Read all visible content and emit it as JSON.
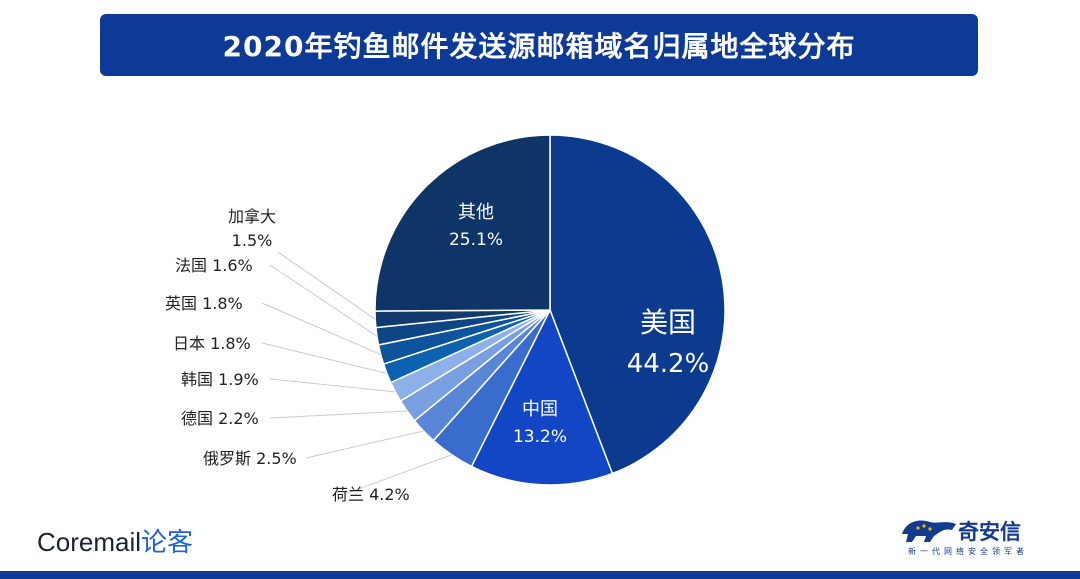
{
  "chart_data": {
    "type": "pie",
    "title": "2020年钓鱼邮件发送源邮箱域名归属地全球分布",
    "slices": [
      {
        "label": "美国",
        "value": 44.2,
        "display": "44.2%",
        "color": "#0c3a8e"
      },
      {
        "label": "中国",
        "value": 13.2,
        "display": "13.2%",
        "color": "#1346c4"
      },
      {
        "label": "荷兰",
        "value": 4.2,
        "display": "4.2%",
        "color": "#3a6ccd"
      },
      {
        "label": "俄罗斯",
        "value": 2.5,
        "display": "2.5%",
        "color": "#5a86d8"
      },
      {
        "label": "德国",
        "value": 2.2,
        "display": "2.2%",
        "color": "#7a9fe0"
      },
      {
        "label": "韩国",
        "value": 1.9,
        "display": "1.9%",
        "color": "#8eb0ea"
      },
      {
        "label": "日本",
        "value": 1.8,
        "display": "1.8%",
        "color": "#0d62b0"
      },
      {
        "label": "英国",
        "value": 1.8,
        "display": "1.8%",
        "color": "#0d549c"
      },
      {
        "label": "法国",
        "value": 1.6,
        "display": "1.6%",
        "color": "#0e4584"
      },
      {
        "label": "加拿大",
        "value": 1.5,
        "display": "1.5%",
        "color": "#123a6e"
      },
      {
        "label": "其他",
        "value": 25.1,
        "display": "25.1%",
        "color": "#0f3468"
      }
    ]
  },
  "brand": {
    "left_main": "Coremail",
    "left_accent": "论客",
    "right_name": "奇安信",
    "right_slogan": "新一代网络安全领军者"
  }
}
